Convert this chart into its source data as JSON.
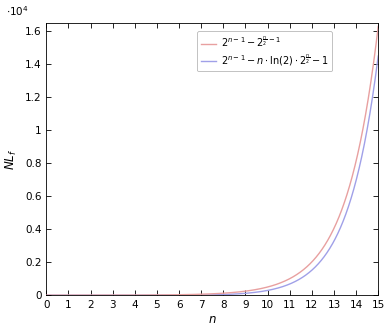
{
  "title": "",
  "xlabel": "n",
  "ylabel": "NL_f",
  "x_start": 0,
  "x_end": 15,
  "ylim": [
    0,
    16500
  ],
  "ytick_scale": 10000,
  "ytick_vals": [
    0,
    2000,
    4000,
    6000,
    8000,
    10000,
    12000,
    14000,
    16000
  ],
  "ytick_labels": [
    "0",
    "0.2",
    "0.4",
    "0.6",
    "0.8",
    "1",
    "1.2",
    "1.4",
    "1.6"
  ],
  "xticks": [
    0,
    1,
    2,
    3,
    4,
    5,
    6,
    7,
    8,
    9,
    10,
    11,
    12,
    13,
    14,
    15
  ],
  "red_label": "$2^{n-1} - 2^{\\frac{n}{2}-1}$",
  "blue_label": "$2^{n-1} - n \\cdot \\ln(2) \\cdot 2^{\\frac{n}{2}} - 1$",
  "red_color": "#e8a0a0",
  "blue_color": "#a0a0e8",
  "linewidth": 1.0,
  "background_color": "#ffffff",
  "figsize": [
    3.89,
    3.3
  ],
  "dpi": 100,
  "legend_fontsize": 7.0,
  "tick_fontsize": 7.5,
  "label_fontsize": 8.5
}
